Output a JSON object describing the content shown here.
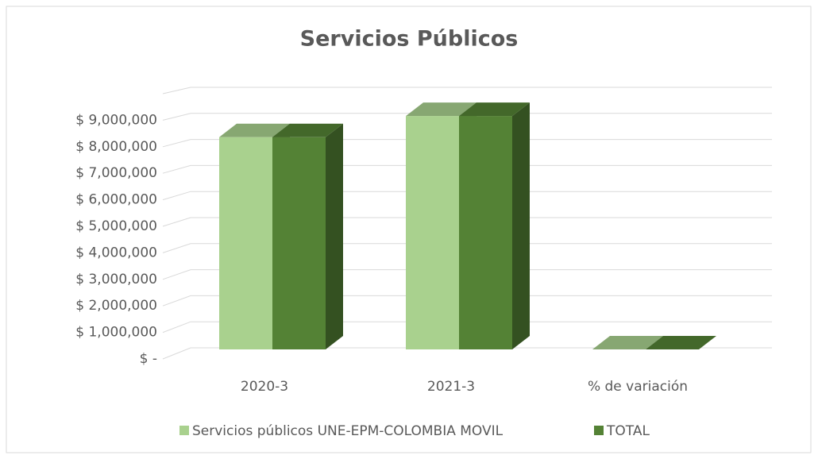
{
  "chart_data": {
    "type": "bar3d",
    "title": "Servicios Públicos",
    "categories": [
      "2020-3",
      "2021-3",
      "% de variación"
    ],
    "series": [
      {
        "name": "Servicios públicos UNE-EPM-COLOMBIA MOVIL",
        "color": "#a9d18e",
        "values": [
          8000000,
          8800000,
          0.1
        ]
      },
      {
        "name": "TOTAL",
        "color": "#548235",
        "values": [
          8000000,
          8800000,
          0.1
        ]
      }
    ],
    "ylim": [
      0,
      10000000
    ],
    "yticks": [
      {
        "value": 0,
        "label": "$ -"
      },
      {
        "value": 1000000,
        "label": "$ 1,000,000"
      },
      {
        "value": 2000000,
        "label": "$ 2,000,000"
      },
      {
        "value": 3000000,
        "label": "$ 3,000,000"
      },
      {
        "value": 4000000,
        "label": "$ 4,000,000"
      },
      {
        "value": 5000000,
        "label": "$ 5,000,000"
      },
      {
        "value": 6000000,
        "label": "$ 6,000,000"
      },
      {
        "value": 7000000,
        "label": "$ 7,000,000"
      },
      {
        "value": 8000000,
        "label": "$ 8,000,000"
      },
      {
        "value": 9000000,
        "label": "$ 9,000,000"
      }
    ],
    "grid": true,
    "legend": "bottom"
  }
}
